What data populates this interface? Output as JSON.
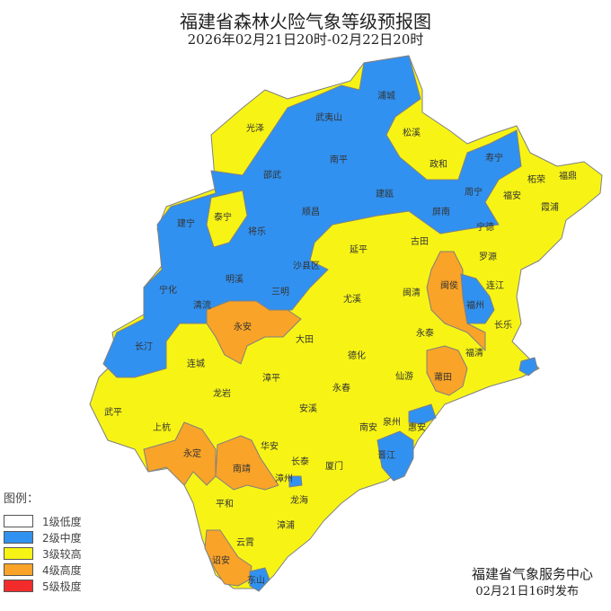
{
  "title": "福建省森林火险气象等级预报图",
  "subtitle": "2026年02月21日20时-02月22日20时",
  "legend": {
    "title": "图例：",
    "items": [
      {
        "label": "1级低度",
        "color": "#ffffff"
      },
      {
        "label": "2级中度",
        "color": "#3191f0"
      },
      {
        "label": "3级较高",
        "color": "#f7f415"
      },
      {
        "label": "4级高度",
        "color": "#f9a328"
      },
      {
        "label": "5级极度",
        "color": "#f32b2b"
      }
    ]
  },
  "counties": [
    {
      "name": "浦城",
      "level": 2
    },
    {
      "name": "武夷山",
      "level": 2
    },
    {
      "name": "光泽",
      "level": 3
    },
    {
      "name": "松溪",
      "level": 3
    },
    {
      "name": "政和",
      "level": 3
    },
    {
      "name": "寿宁",
      "level": 2
    },
    {
      "name": "柘荣",
      "level": 3
    },
    {
      "name": "福鼎",
      "level": 3
    },
    {
      "name": "南平",
      "level": 2
    },
    {
      "name": "邵武",
      "level": 2
    },
    {
      "name": "建瓯",
      "level": 2
    },
    {
      "name": "周宁",
      "level": 2
    },
    {
      "name": "福安",
      "level": 3
    },
    {
      "name": "霞浦",
      "level": 3
    },
    {
      "name": "泰宁",
      "level": 3
    },
    {
      "name": "建宁",
      "level": 2
    },
    {
      "name": "将乐",
      "level": 2
    },
    {
      "name": "顺昌",
      "level": 2
    },
    {
      "name": "屏南",
      "level": 2
    },
    {
      "name": "宁德",
      "level": 3
    },
    {
      "name": "古田",
      "level": 3
    },
    {
      "name": "延平",
      "level": 3
    },
    {
      "name": "罗源",
      "level": 3
    },
    {
      "name": "沙县区",
      "level": 2
    },
    {
      "name": "明溪",
      "level": 2
    },
    {
      "name": "宁化",
      "level": 2
    },
    {
      "name": "三明",
      "level": 2
    },
    {
      "name": "闽侯",
      "level": 4
    },
    {
      "name": "连江",
      "level": 3
    },
    {
      "name": "尤溪",
      "level": 3
    },
    {
      "name": "闽清",
      "level": 3
    },
    {
      "name": "清流",
      "level": 2
    },
    {
      "name": "福州",
      "level": 2
    },
    {
      "name": "永安",
      "level": 4
    },
    {
      "name": "长乐",
      "level": 3
    },
    {
      "name": "大田",
      "level": 3
    },
    {
      "name": "永泰",
      "level": 3
    },
    {
      "name": "长汀",
      "level": 2
    },
    {
      "name": "福清",
      "level": 3
    },
    {
      "name": "德化",
      "level": 3
    },
    {
      "name": "连城",
      "level": 3
    },
    {
      "name": "莆田",
      "level": 4
    },
    {
      "name": "仙游",
      "level": 3
    },
    {
      "name": "漳平",
      "level": 3
    },
    {
      "name": "永春",
      "level": 3
    },
    {
      "name": "龙岩",
      "level": 3
    },
    {
      "name": "武平",
      "level": 3
    },
    {
      "name": "安溪",
      "level": 3
    },
    {
      "name": "南安",
      "level": 3
    },
    {
      "name": "泉州",
      "level": 3
    },
    {
      "name": "惠安",
      "level": 3
    },
    {
      "name": "上杭",
      "level": 3
    },
    {
      "name": "永定",
      "level": 4
    },
    {
      "name": "南靖",
      "level": 4
    },
    {
      "name": "晋江",
      "level": 2
    },
    {
      "name": "华安",
      "level": 3
    },
    {
      "name": "长泰",
      "level": 3
    },
    {
      "name": "厦门",
      "level": 3
    },
    {
      "name": "漳州",
      "level": 3
    },
    {
      "name": "龙海",
      "level": 3
    },
    {
      "name": "平和",
      "level": 3
    },
    {
      "name": "漳浦",
      "level": 3
    },
    {
      "name": "云霄",
      "level": 3
    },
    {
      "name": "诏安",
      "level": 4
    },
    {
      "name": "东山",
      "level": 2
    }
  ],
  "footer": {
    "issuer": "福建省气象服务中心",
    "issued": "02月21日16时发布"
  }
}
